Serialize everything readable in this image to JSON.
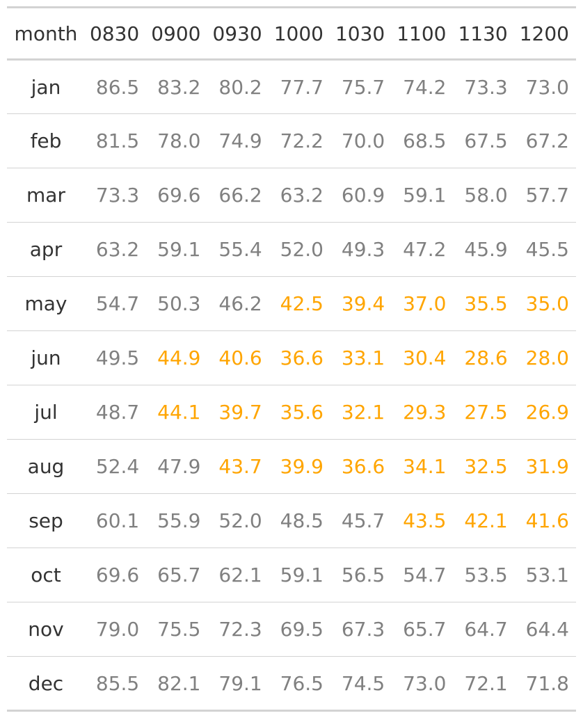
{
  "chart_data": {
    "type": "table",
    "columns": [
      "month",
      "0830",
      "0900",
      "0930",
      "1000",
      "1030",
      "1100",
      "1130",
      "1200"
    ],
    "rows": [
      {
        "month": "jan",
        "values": [
          "86.5",
          "83.2",
          "80.2",
          "77.7",
          "75.7",
          "74.2",
          "73.3",
          "73.0"
        ],
        "highlight": [
          false,
          false,
          false,
          false,
          false,
          false,
          false,
          false
        ]
      },
      {
        "month": "feb",
        "values": [
          "81.5",
          "78.0",
          "74.9",
          "72.2",
          "70.0",
          "68.5",
          "67.5",
          "67.2"
        ],
        "highlight": [
          false,
          false,
          false,
          false,
          false,
          false,
          false,
          false
        ]
      },
      {
        "month": "mar",
        "values": [
          "73.3",
          "69.6",
          "66.2",
          "63.2",
          "60.9",
          "59.1",
          "58.0",
          "57.7"
        ],
        "highlight": [
          false,
          false,
          false,
          false,
          false,
          false,
          false,
          false
        ]
      },
      {
        "month": "apr",
        "values": [
          "63.2",
          "59.1",
          "55.4",
          "52.0",
          "49.3",
          "47.2",
          "45.9",
          "45.5"
        ],
        "highlight": [
          false,
          false,
          false,
          false,
          false,
          false,
          false,
          false
        ]
      },
      {
        "month": "may",
        "values": [
          "54.7",
          "50.3",
          "46.2",
          "42.5",
          "39.4",
          "37.0",
          "35.5",
          "35.0"
        ],
        "highlight": [
          false,
          false,
          false,
          true,
          true,
          true,
          true,
          true
        ]
      },
      {
        "month": "jun",
        "values": [
          "49.5",
          "44.9",
          "40.6",
          "36.6",
          "33.1",
          "30.4",
          "28.6",
          "28.0"
        ],
        "highlight": [
          false,
          true,
          true,
          true,
          true,
          true,
          true,
          true
        ]
      },
      {
        "month": "jul",
        "values": [
          "48.7",
          "44.1",
          "39.7",
          "35.6",
          "32.1",
          "29.3",
          "27.5",
          "26.9"
        ],
        "highlight": [
          false,
          true,
          true,
          true,
          true,
          true,
          true,
          true
        ]
      },
      {
        "month": "aug",
        "values": [
          "52.4",
          "47.9",
          "43.7",
          "39.9",
          "36.6",
          "34.1",
          "32.5",
          "31.9"
        ],
        "highlight": [
          false,
          false,
          true,
          true,
          true,
          true,
          true,
          true
        ]
      },
      {
        "month": "sep",
        "values": [
          "60.1",
          "55.9",
          "52.0",
          "48.5",
          "45.7",
          "43.5",
          "42.1",
          "41.6"
        ],
        "highlight": [
          false,
          false,
          false,
          false,
          false,
          true,
          true,
          true
        ]
      },
      {
        "month": "oct",
        "values": [
          "69.6",
          "65.7",
          "62.1",
          "59.1",
          "56.5",
          "54.7",
          "53.5",
          "53.1"
        ],
        "highlight": [
          false,
          false,
          false,
          false,
          false,
          false,
          false,
          false
        ]
      },
      {
        "month": "nov",
        "values": [
          "79.0",
          "75.5",
          "72.3",
          "69.5",
          "67.3",
          "65.7",
          "64.7",
          "64.4"
        ],
        "highlight": [
          false,
          false,
          false,
          false,
          false,
          false,
          false,
          false
        ]
      },
      {
        "month": "dec",
        "values": [
          "85.5",
          "82.1",
          "79.1",
          "76.5",
          "74.5",
          "73.0",
          "72.1",
          "71.8"
        ],
        "highlight": [
          false,
          false,
          false,
          false,
          false,
          false,
          false,
          false
        ]
      }
    ]
  },
  "colors": {
    "header_text": "#333333",
    "month_text": "#333333",
    "value_text": "#808080",
    "highlight_text": "#ffa500",
    "rule": "#d3d3d3"
  }
}
